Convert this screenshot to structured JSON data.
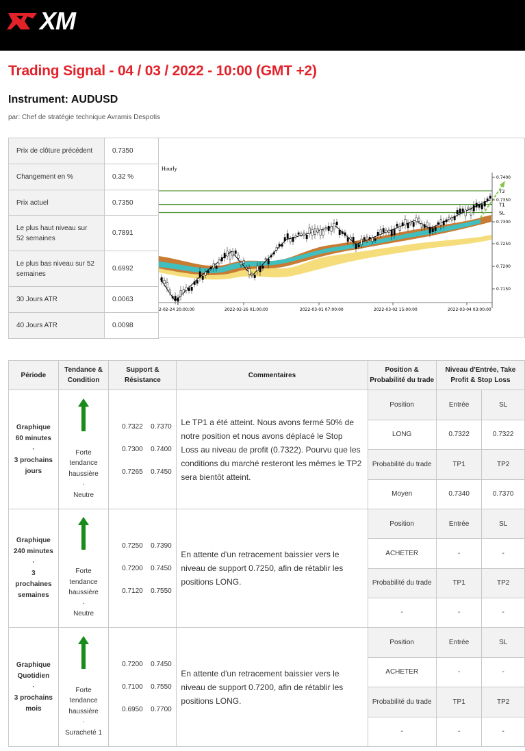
{
  "header": {
    "logo_text": "XM",
    "colors": {
      "bar": "#000000",
      "title": "#e3222a",
      "logo_accent": "#e3222a"
    }
  },
  "title": "Trading Signal - 04 / 03 / 2022 - 10:00 (GMT +2)",
  "instrument": "Instrument: AUDUSD",
  "author": "par: Chef de stratégie technique Avramis Despotis",
  "stats": [
    {
      "label": "Prix de clôture précédent",
      "value": "0.7350"
    },
    {
      "label": "Changement en %",
      "value": "0.32 %"
    },
    {
      "label": "Prix actuel",
      "value": "0.7350"
    },
    {
      "label": "Le plus haut niveau sur 52 semaines",
      "value": "0.7891"
    },
    {
      "label": "Le plus bas niveau sur 52 semaines",
      "value": "0.6992"
    },
    {
      "label": "30 Jours ATR",
      "value": "0.0063"
    },
    {
      "label": "40 Jours ATR",
      "value": "0.0098"
    }
  ],
  "chart": {
    "timeframe": "Hourly",
    "y_ticks": [
      "0.7400",
      "0.7350",
      "0.7300",
      "0.7250",
      "0.7200",
      "0.7150"
    ],
    "x_ticks": [
      "2-02-24 20:00:00",
      "2022-02-26 01:00:00",
      "2022-03-01 07:00:00",
      "2022-03-02 15:00:00",
      "2022-03-04 03:00:00"
    ],
    "levels": [
      {
        "label": "T2",
        "value": 0.737
      },
      {
        "label": "T1",
        "value": 0.734
      },
      {
        "label": "SL",
        "value": 0.7322
      }
    ],
    "colors": {
      "level": "#4a8f2e",
      "band_outer": "#f6dd7c",
      "band_mid": "#c87b33",
      "band_inner": "#3fbfbf"
    }
  },
  "signals": {
    "headers": {
      "period": "Période",
      "trend": "Tendance & Condition",
      "sr": "Support & Résistance",
      "comments": "Commentaires",
      "position": "Position & Probabilité du trade",
      "levels": "Niveau d'Entrée, Take Profit & Stop Loss"
    },
    "rows": [
      {
        "period_lines": [
          "Graphique",
          "60 minutes",
          "·",
          "3 prochains",
          "jours"
        ],
        "trend_lines": [
          "Forte",
          "tendance",
          "haussière",
          "·",
          "Neutre"
        ],
        "sr": [
          [
            "0.7322",
            "0.7370"
          ],
          [
            "0.7300",
            "0.7400"
          ],
          [
            "0.7265",
            "0.7450"
          ]
        ],
        "comment": "Le TP1 a été atteint. Nous avons fermé 50% de notre position et nous avons déplacé le Stop Loss au niveau de profit (0.7322). Pourvu que les conditions du marché resteront les mêmes le TP2 sera bientôt atteint.",
        "grid": [
          [
            "Position",
            "Entrée",
            "SL"
          ],
          [
            "LONG",
            "0.7322",
            "0.7322"
          ],
          [
            "Probabilité du trade",
            "TP1",
            "TP2"
          ],
          [
            "Moyen",
            "0.7340",
            "0.7370"
          ]
        ]
      },
      {
        "period_lines": [
          "Graphique",
          "240 minutes",
          "·",
          "3",
          "prochaines",
          "semaines"
        ],
        "trend_lines": [
          "Forte",
          "tendance",
          "haussière",
          "·",
          "Neutre"
        ],
        "sr": [
          [
            "0.7250",
            "0.7390"
          ],
          [
            "0.7200",
            "0.7450"
          ],
          [
            "0.7120",
            "0.7550"
          ]
        ],
        "comment": "En attente d'un retracement baissier vers le niveau de support 0.7250, afin de rétablir les positions LONG.",
        "grid": [
          [
            "Position",
            "Entrée",
            "SL"
          ],
          [
            "ACHETER",
            "-",
            "-"
          ],
          [
            "Probabilité du trade",
            "TP1",
            "TP2"
          ],
          [
            "-",
            "-",
            "-"
          ]
        ]
      },
      {
        "period_lines": [
          "Graphique",
          "Quotidien",
          "·",
          "3 prochains",
          "mois"
        ],
        "trend_lines": [
          "Forte",
          "tendance",
          "haussière",
          "·",
          "Surachеté 1"
        ],
        "sr": [
          [
            "0.7200",
            "0.7450"
          ],
          [
            "0.7100",
            "0.7550"
          ],
          [
            "0.6950",
            "0.7700"
          ]
        ],
        "comment": "En attente d'un retracement baissier vers le niveau de support 0.7200, afin de rétablir les positions LONG.",
        "grid": [
          [
            "Position",
            "Entrée",
            "SL"
          ],
          [
            "ACHETER",
            "-",
            "-"
          ],
          [
            "Probabilité du trade",
            "TP1",
            "TP2"
          ],
          [
            "-",
            "-",
            "-"
          ]
        ]
      }
    ],
    "arrow_color": "#1a8a1a"
  }
}
